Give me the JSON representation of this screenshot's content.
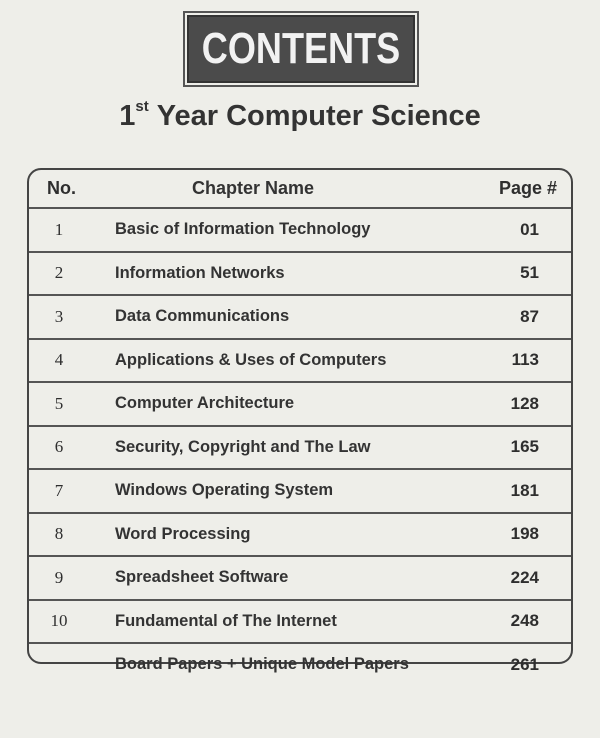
{
  "header": {
    "banner": "CONTENTS",
    "title_sup": "st",
    "title_num": "1",
    "title_text": "Year Computer Science"
  },
  "table": {
    "columns": [
      "No.",
      "Chapter Name",
      "Page #"
    ],
    "rows": [
      {
        "no": "1",
        "name": "Basic of Information Technology",
        "page": "01"
      },
      {
        "no": "2",
        "name": "Information Networks",
        "page": "51"
      },
      {
        "no": "3",
        "name": "Data Communications",
        "page": "87"
      },
      {
        "no": "4",
        "name": "Applications & Uses of Computers",
        "page": "113"
      },
      {
        "no": "5",
        "name": "Computer Architecture",
        "page": "128"
      },
      {
        "no": "6",
        "name": "Security, Copyright and The Law",
        "page": "165"
      },
      {
        "no": "7",
        "name": "Windows Operating System",
        "page": "181"
      },
      {
        "no": "8",
        "name": "Word Processing",
        "page": "198"
      },
      {
        "no": "9",
        "name": "Spreadsheet Software",
        "page": "224"
      },
      {
        "no": "10",
        "name": "Fundamental of The Internet",
        "page": "248"
      },
      {
        "no": "",
        "name": "Board Papers + Unique Model Papers",
        "page": "261"
      }
    ]
  }
}
